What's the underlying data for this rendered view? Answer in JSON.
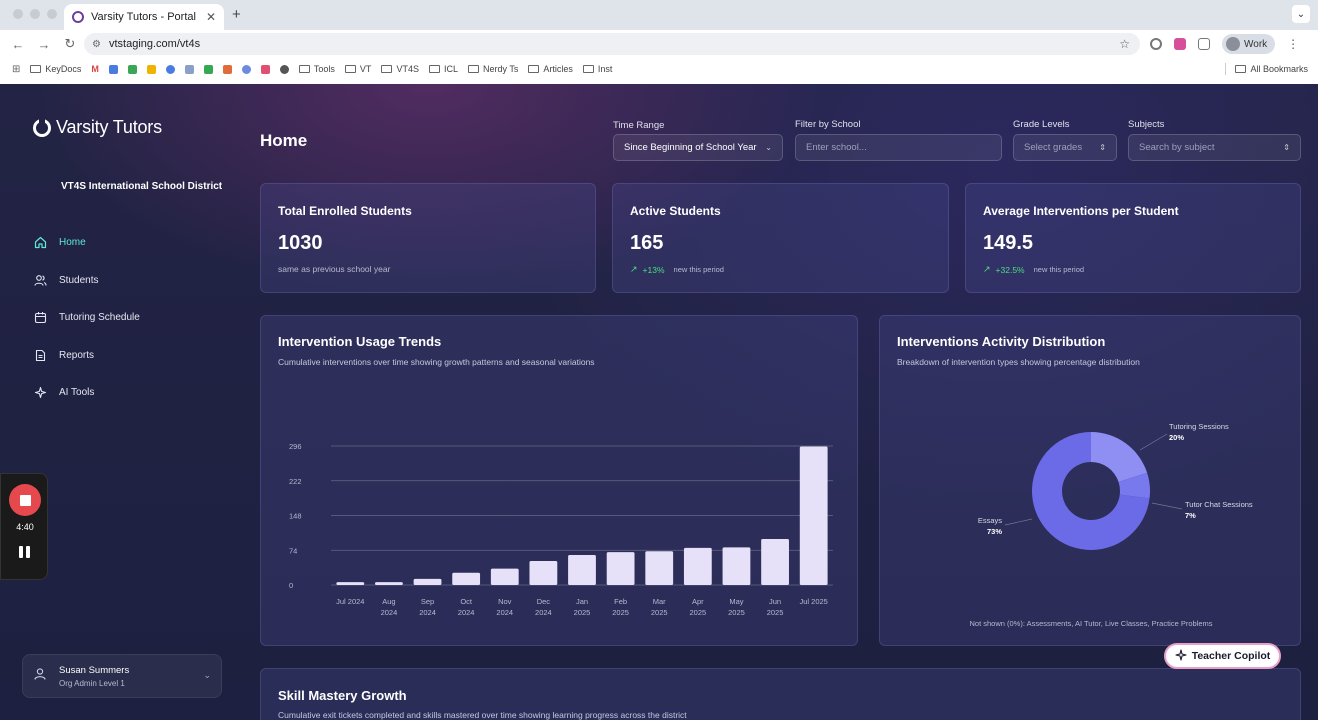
{
  "browser": {
    "tab_title": "Varsity Tutors - Portal",
    "url": "vtstaging.com/vt4s",
    "profile": "Work",
    "bookmarks": [
      "KeyDocs",
      "Tools",
      "VT",
      "VT4S",
      "ICL",
      "Nerdy Ts",
      "Articles",
      "Inst"
    ],
    "all_bookmarks": "All Bookmarks"
  },
  "brand": "Varsity Tutors",
  "district": "VT4S International School District",
  "nav": [
    {
      "label": "Home",
      "icon": "home-icon"
    },
    {
      "label": "Students",
      "icon": "users-icon"
    },
    {
      "label": "Tutoring Schedule",
      "icon": "calendar-icon"
    },
    {
      "label": "Reports",
      "icon": "document-icon"
    },
    {
      "label": "AI Tools",
      "icon": "sparkles-icon"
    }
  ],
  "user": {
    "name": "Susan Summers",
    "role": "Org Admin Level 1"
  },
  "page_title": "Home",
  "filters": {
    "time_range": {
      "label": "Time Range",
      "value": "Since Beginning of School Year"
    },
    "school": {
      "label": "Filter by School",
      "placeholder": "Enter school..."
    },
    "grades": {
      "label": "Grade Levels",
      "placeholder": "Select grades"
    },
    "subjects": {
      "label": "Subjects",
      "placeholder": "Search by subject"
    }
  },
  "stats": [
    {
      "label": "Total Enrolled Students",
      "value": "1030",
      "note": "same as previous school year"
    },
    {
      "label": "Active Students",
      "value": "165",
      "change": "+13%",
      "note": "new this period"
    },
    {
      "label": "Average Interventions per Student",
      "value": "149.5",
      "change": "+32.5%",
      "note": "new this period"
    }
  ],
  "usage_chart": {
    "title": "Intervention Usage Trends",
    "subtitle": "Cumulative interventions over time showing growth patterns and seasonal variations"
  },
  "distribution_chart": {
    "title": "Interventions Activity Distribution",
    "subtitle": "Breakdown of intervention types showing percentage distribution",
    "footnote": "Not shown (0%): Assessments, AI Tutor, Live Classes, Practice Problems"
  },
  "skill_card": {
    "title": "Skill Mastery Growth",
    "subtitle": "Cumulative exit tickets completed and skills mastered over time showing learning progress across the district"
  },
  "recorder": {
    "time": "4:40"
  },
  "copilot": "Teacher Copilot",
  "colors": {
    "accent": "#5eead4",
    "bar": "#e6e0f8",
    "donut_main": "#6b6be8",
    "donut_light": "#8e8ef3",
    "donut_mid": "#7979ee"
  },
  "chart_data": [
    {
      "type": "bar",
      "title": "Intervention Usage Trends",
      "categories": [
        [
          "Jul 2024"
        ],
        [
          "Aug",
          "2024"
        ],
        [
          "Sep",
          "2024"
        ],
        [
          "Oct",
          "2024"
        ],
        [
          "Nov",
          "2024"
        ],
        [
          "Dec",
          "2024"
        ],
        [
          "Jan",
          "2025"
        ],
        [
          "Feb",
          "2025"
        ],
        [
          "Mar",
          "2025"
        ],
        [
          "Apr",
          "2025"
        ],
        [
          "May",
          "2025"
        ],
        [
          "Jun",
          "2025"
        ],
        [
          "Jul 2025"
        ]
      ],
      "values": [
        6,
        6,
        13,
        26,
        35,
        51,
        64,
        70,
        72,
        79,
        80,
        98,
        295
      ],
      "yticks": [
        0,
        74,
        148,
        222,
        296
      ],
      "ylim": [
        0,
        296
      ],
      "grid": true
    },
    {
      "type": "pie",
      "title": "Interventions Activity Distribution",
      "donut": true,
      "slices": [
        {
          "label": "Tutoring Sessions",
          "pct_label": "20%",
          "value": 20
        },
        {
          "label": "Tutor Chat Sessions",
          "pct_label": "7%",
          "value": 7
        },
        {
          "label": "Essays",
          "pct_label": "73%",
          "value": 73
        }
      ]
    }
  ]
}
